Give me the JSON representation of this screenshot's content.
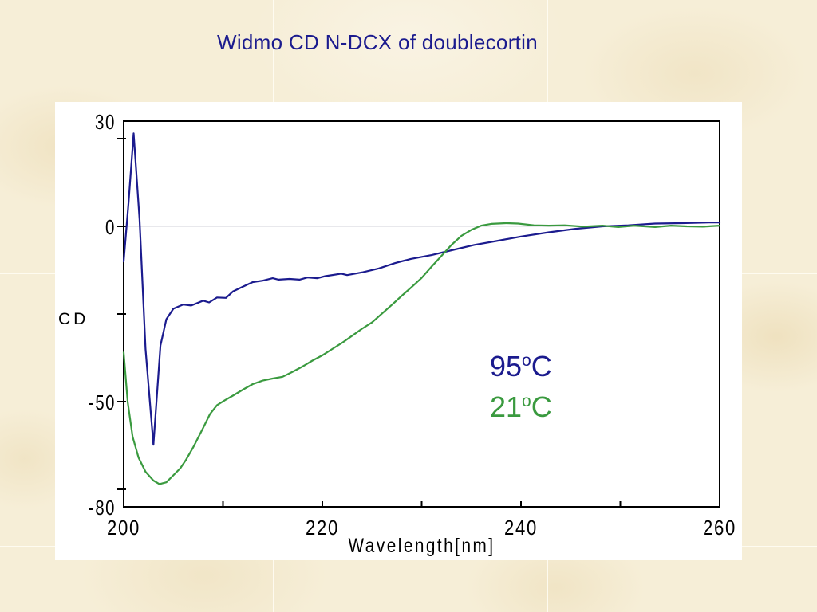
{
  "title": {
    "text": "Widmo CD N-DCX of doublecortin",
    "color": "#1b1b8e"
  },
  "background": {
    "base": "#f6eed7",
    "mottle": "#ebd9b2",
    "seam": "#fffdf4"
  },
  "panel": {
    "background": "#ffffff"
  },
  "legend": {
    "items": [
      {
        "temp": "95",
        "degree": "o",
        "unit": "C",
        "color": "#1b1b8e"
      },
      {
        "temp": "21",
        "degree": "o",
        "unit": "C",
        "color": "#3a9a3f"
      }
    ]
  },
  "chart_data": {
    "type": "line",
    "title": "Widmo CD N-DCX of doublecortin",
    "xlabel": "Wavelength[nm]",
    "ylabel": "CD",
    "xlim": [
      200,
      260
    ],
    "ylim": [
      -80,
      30
    ],
    "x_ticks": [
      210,
      220,
      230,
      240,
      250
    ],
    "x_tick_labels": [
      {
        "value": 200,
        "label": "200"
      },
      {
        "value": 220,
        "label": "220"
      },
      {
        "value": 240,
        "label": "240"
      },
      {
        "value": 260,
        "label": "260"
      }
    ],
    "y_ticks": [
      25,
      0,
      -25,
      -50,
      -75
    ],
    "y_tick_labels": [
      {
        "value": 30,
        "label": "30"
      },
      {
        "value": 0,
        "label": "0"
      },
      {
        "value": -50,
        "label": "-50"
      },
      {
        "value": -80,
        "label": "-80"
      }
    ],
    "grid_y": [
      0
    ],
    "grid_color": "#d9d9e0",
    "frame_color": "#000000",
    "legend_position": "inside-right",
    "series": [
      {
        "name": "95oC",
        "color": "#1b1b8e",
        "points": [
          [
            200,
            -10
          ],
          [
            200.5,
            7
          ],
          [
            201,
            26.5
          ],
          [
            201.6,
            2
          ],
          [
            202.2,
            -35
          ],
          [
            203,
            -62.3
          ],
          [
            203.7,
            -34
          ],
          [
            204.3,
            -26.5
          ],
          [
            205,
            -23.5
          ],
          [
            206,
            -22.3
          ],
          [
            206.8,
            -22.6
          ],
          [
            208,
            -21.2
          ],
          [
            208.6,
            -21.7
          ],
          [
            209.4,
            -20.3
          ],
          [
            210.3,
            -20.4
          ],
          [
            211,
            -18.6
          ],
          [
            212,
            -17.2
          ],
          [
            213,
            -15.9
          ],
          [
            214,
            -15.5
          ],
          [
            215,
            -14.8
          ],
          [
            215.6,
            -15.2
          ],
          [
            216.7,
            -15
          ],
          [
            217.7,
            -15.2
          ],
          [
            218.5,
            -14.6
          ],
          [
            219.5,
            -14.8
          ],
          [
            220.3,
            -14.2
          ],
          [
            221.9,
            -13.5
          ],
          [
            222.5,
            -13.9
          ],
          [
            224.1,
            -13.1
          ],
          [
            225.7,
            -12
          ],
          [
            227.3,
            -10.5
          ],
          [
            228.9,
            -9.3
          ],
          [
            231,
            -8.2
          ],
          [
            233.2,
            -6.7
          ],
          [
            235.3,
            -5.3
          ],
          [
            237.5,
            -4.2
          ],
          [
            240,
            -2.9
          ],
          [
            242.8,
            -1.7
          ],
          [
            245.5,
            -0.7
          ],
          [
            248.2,
            0
          ],
          [
            250.8,
            0.3
          ],
          [
            253.5,
            0.8
          ],
          [
            256.2,
            0.9
          ],
          [
            258.9,
            1.1
          ],
          [
            260,
            1.1
          ]
        ]
      },
      {
        "name": "21oC",
        "color": "#3a9a3f",
        "points": [
          [
            200,
            -36
          ],
          [
            200.4,
            -50
          ],
          [
            200.9,
            -60
          ],
          [
            201.5,
            -66
          ],
          [
            202.2,
            -70
          ],
          [
            203,
            -72.5
          ],
          [
            203.6,
            -73.5
          ],
          [
            204.3,
            -73
          ],
          [
            205,
            -71
          ],
          [
            205.7,
            -69
          ],
          [
            206.3,
            -66.5
          ],
          [
            207,
            -63
          ],
          [
            208,
            -57.5
          ],
          [
            208.7,
            -53.5
          ],
          [
            209.4,
            -51
          ],
          [
            210.2,
            -49.6
          ],
          [
            211,
            -48.3
          ],
          [
            212,
            -46.6
          ],
          [
            213,
            -45
          ],
          [
            214,
            -44
          ],
          [
            215,
            -43.4
          ],
          [
            216,
            -42.9
          ],
          [
            217,
            -41.5
          ],
          [
            218,
            -40
          ],
          [
            219,
            -38.3
          ],
          [
            220,
            -36.8
          ],
          [
            221,
            -35
          ],
          [
            222,
            -33.2
          ],
          [
            223,
            -31.2
          ],
          [
            224,
            -29.2
          ],
          [
            225,
            -27.4
          ],
          [
            226,
            -24.9
          ],
          [
            227,
            -22.4
          ],
          [
            228,
            -19.8
          ],
          [
            229,
            -17.3
          ],
          [
            230,
            -14.7
          ],
          [
            231,
            -11.5
          ],
          [
            232,
            -8.4
          ],
          [
            233,
            -5.3
          ],
          [
            234,
            -2.7
          ],
          [
            235,
            -1
          ],
          [
            236,
            0.2
          ],
          [
            237,
            0.7
          ],
          [
            238.5,
            0.9
          ],
          [
            239.7,
            0.8
          ],
          [
            241.3,
            0.3
          ],
          [
            242.8,
            0.2
          ],
          [
            244.4,
            0.3
          ],
          [
            246.3,
            -0.1
          ],
          [
            248.2,
            0.2
          ],
          [
            249.8,
            -0.2
          ],
          [
            251.4,
            0.2
          ],
          [
            253.5,
            -0.2
          ],
          [
            255.1,
            0.2
          ],
          [
            256.7,
            0
          ],
          [
            258.3,
            -0.1
          ],
          [
            260,
            0.2
          ]
        ]
      }
    ]
  }
}
